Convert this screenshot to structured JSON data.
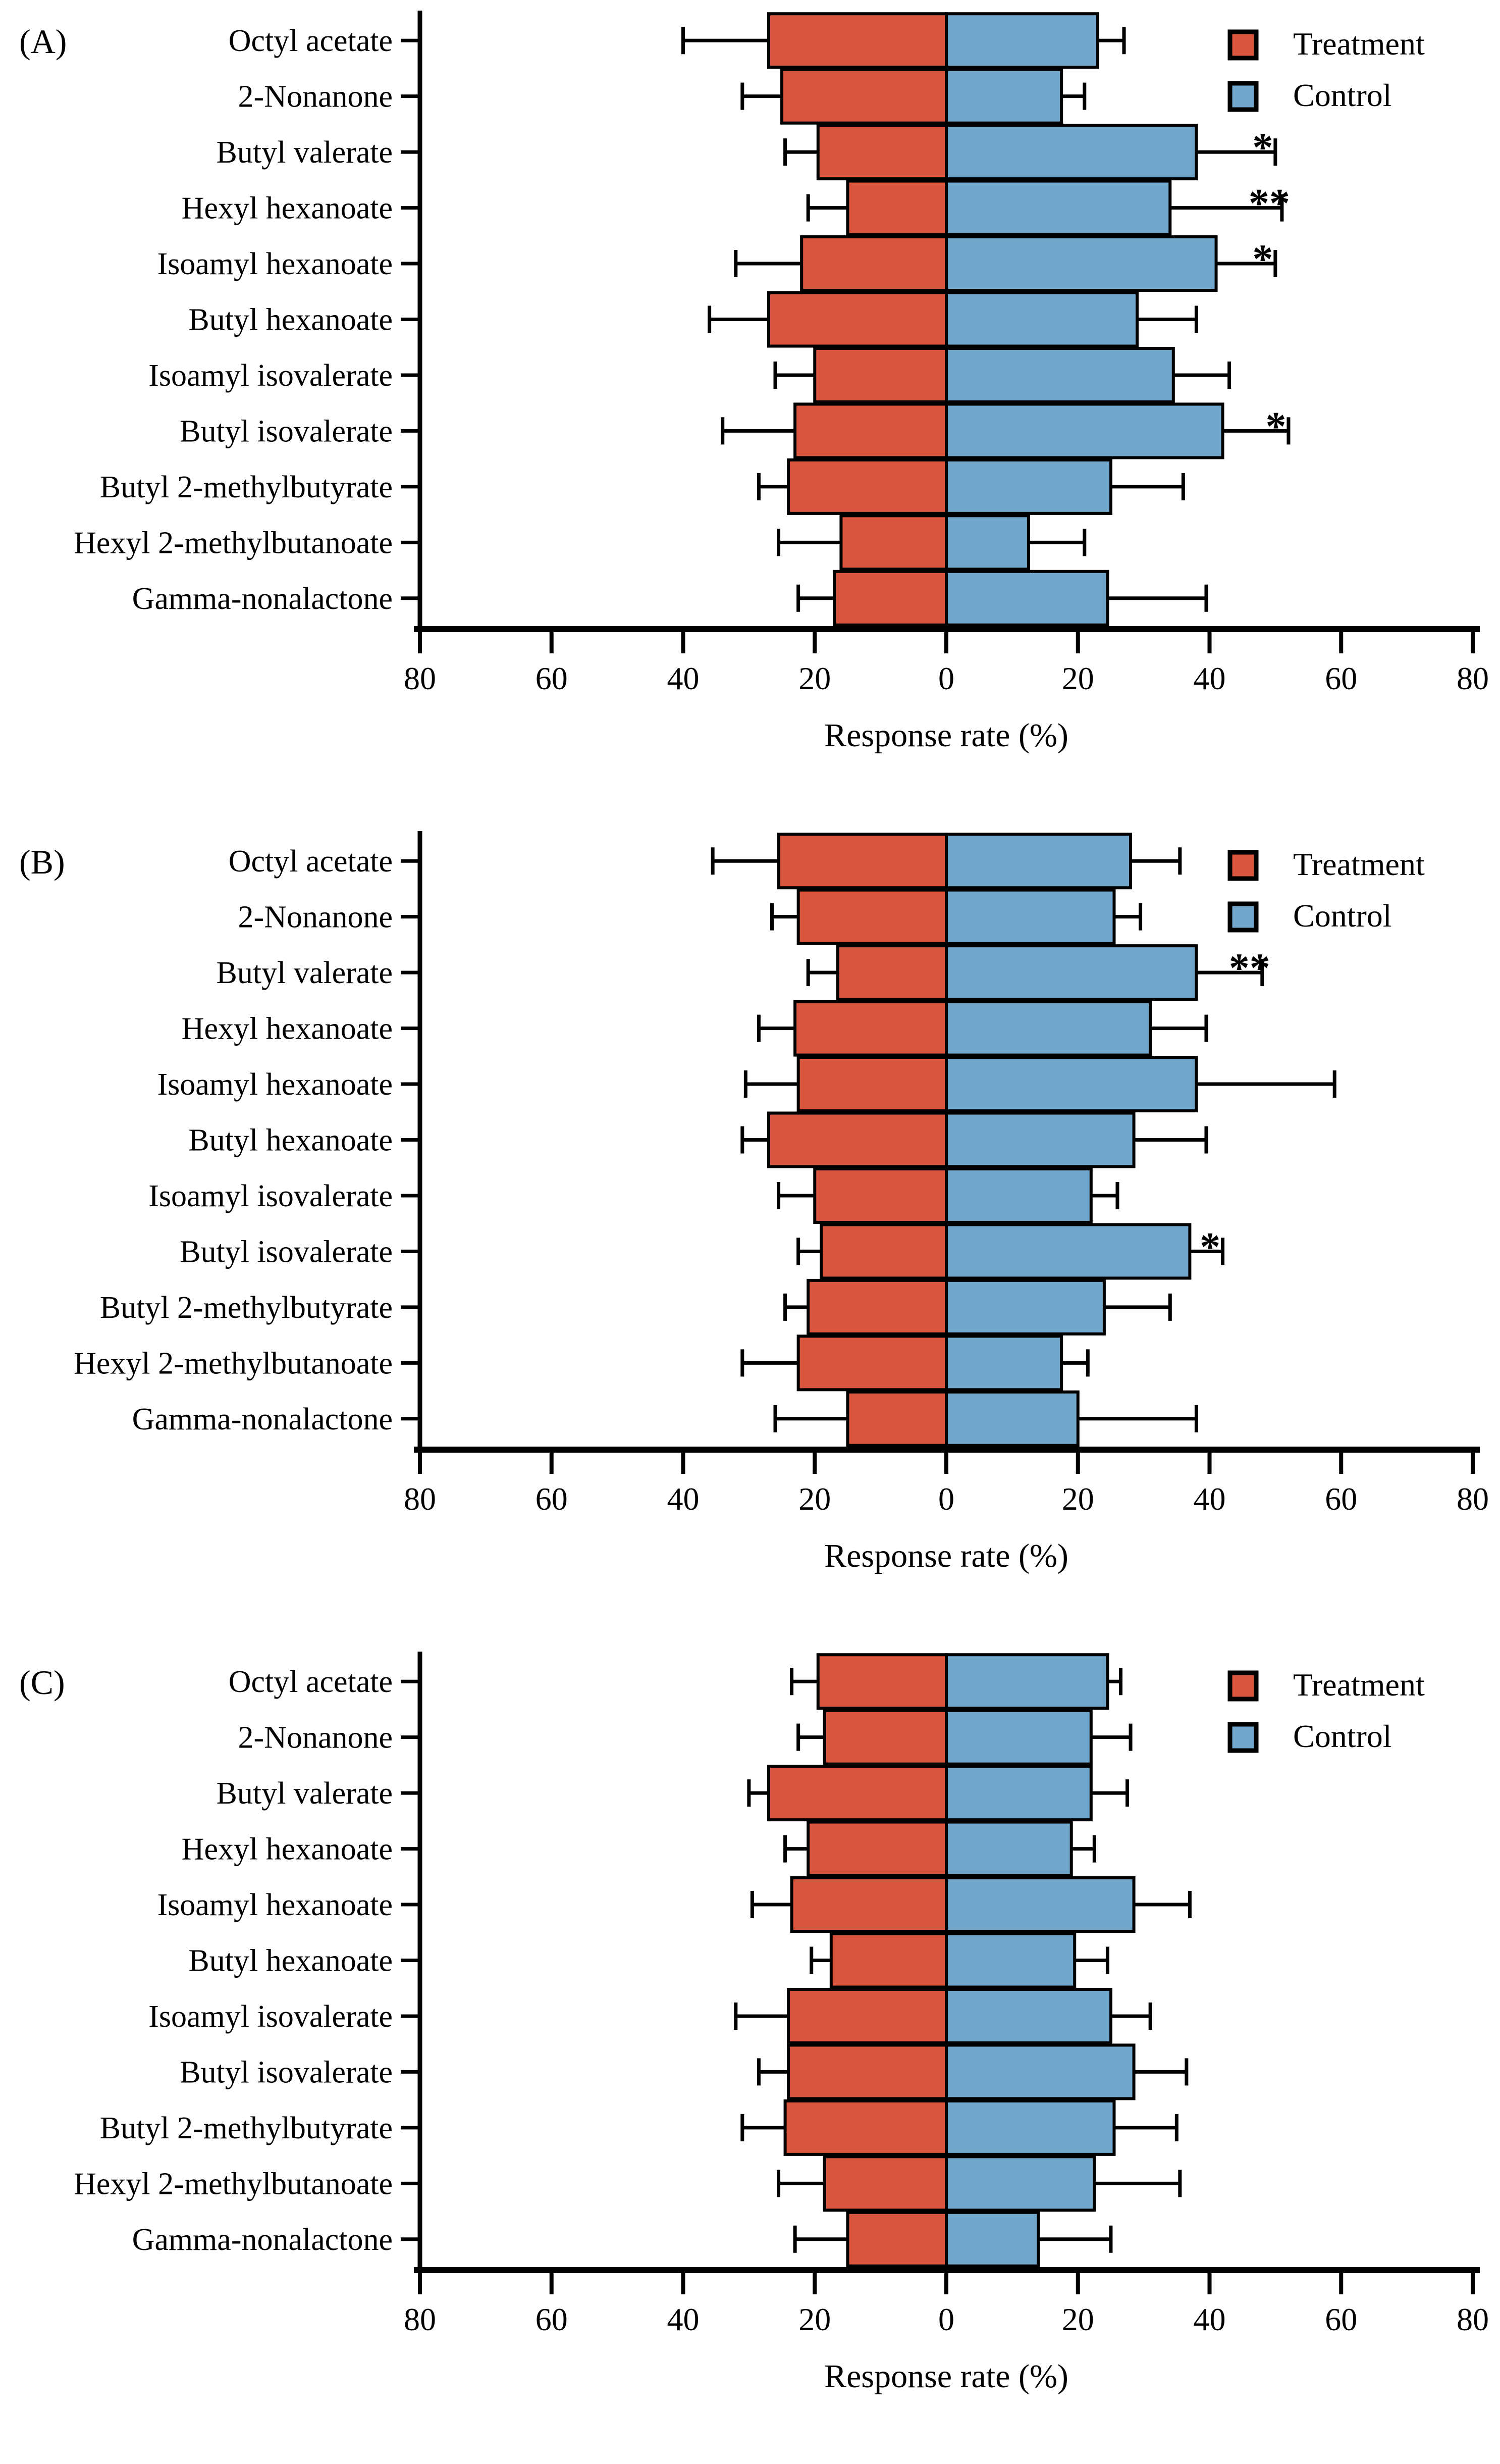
{
  "figure_xlabel": "Response rate (%)",
  "colors": {
    "treatment": "#D9553E",
    "control": "#72A7CC",
    "axis": "#000000",
    "background": "#FFFFFF"
  },
  "legend": {
    "treatment_label": "Treatment",
    "control_label": "Control",
    "position": "top-right"
  },
  "chart_data": [
    {
      "type": "bar",
      "orientation": "horizontal-diverging",
      "panel_label": "(A)",
      "xlabel": "Response rate (%)",
      "xtick_labels": [
        "80",
        "60",
        "40",
        "20",
        "0",
        "20",
        "40",
        "60",
        "80"
      ],
      "xtick_values": [
        -80,
        -60,
        -40,
        -20,
        0,
        20,
        40,
        60,
        80
      ],
      "xlim": [
        -80,
        80
      ],
      "grid": false,
      "legend_entries": [
        "Treatment",
        "Control"
      ],
      "categories": [
        "Octyl acetate",
        "2-Nonanone",
        "Butyl valerate",
        "Hexyl hexanoate",
        "Isoamyl hexanoate",
        "Butyl hexanoate",
        "Isoamyl isovalerate",
        "Butyl isovalerate",
        "Butyl 2-methylbutyrate",
        "Hexyl 2-methylbutanoate",
        "Gamma-nonalactone"
      ],
      "series": [
        {
          "name": "Treatment",
          "color": "#D9553E",
          "direction": "left",
          "values": [
            27,
            25,
            19.5,
            15,
            22,
            27,
            20,
            23,
            24,
            16,
            17
          ],
          "errors": [
            13,
            6,
            5,
            6,
            10,
            9,
            6,
            11,
            4.5,
            9.5,
            5.5
          ]
        },
        {
          "name": "Control",
          "color": "#72A7CC",
          "direction": "right",
          "values": [
            23,
            17.5,
            38,
            34,
            41,
            29,
            34.5,
            42,
            25,
            12.5,
            24.5
          ],
          "errors": [
            4,
            3.5,
            12,
            17,
            9,
            9,
            8.5,
            10,
            11,
            8.5,
            15
          ]
        }
      ],
      "significance": [
        "",
        "",
        "*",
        "**",
        "*",
        "",
        "",
        "*",
        "",
        "",
        ""
      ]
    },
    {
      "type": "bar",
      "orientation": "horizontal-diverging",
      "panel_label": "(B)",
      "xlabel": "Response rate (%)",
      "xtick_labels": [
        "80",
        "60",
        "40",
        "20",
        "0",
        "20",
        "40",
        "60",
        "80"
      ],
      "xtick_values": [
        -80,
        -60,
        -40,
        -20,
        0,
        20,
        40,
        60,
        80
      ],
      "xlim": [
        -80,
        80
      ],
      "grid": false,
      "legend_entries": [
        "Treatment",
        "Control"
      ],
      "categories": [
        "Octyl acetate",
        "2-Nonanone",
        "Butyl valerate",
        "Hexyl hexanoate",
        "Isoamyl hexanoate",
        "Butyl hexanoate",
        "Isoamyl isovalerate",
        "Butyl isovalerate",
        "Butyl 2-methylbutyrate",
        "Hexyl 2-methylbutanoate",
        "Gamma-nonalactone"
      ],
      "series": [
        {
          "name": "Treatment",
          "color": "#D9553E",
          "direction": "left",
          "values": [
            25.5,
            22.5,
            16.5,
            23,
            22.5,
            27,
            20,
            19,
            21,
            22.5,
            15
          ],
          "errors": [
            10,
            4,
            4.5,
            5.5,
            8,
            4,
            5.5,
            3.5,
            3.5,
            8.5,
            11
          ]
        },
        {
          "name": "Control",
          "color": "#72A7CC",
          "direction": "right",
          "values": [
            28,
            25.5,
            38,
            31,
            38,
            28.5,
            22,
            37,
            24,
            17.5,
            20
          ],
          "errors": [
            7.5,
            4,
            10,
            8.5,
            21,
            11,
            4,
            5,
            10,
            4,
            18
          ]
        }
      ],
      "significance": [
        "",
        "",
        "**",
        "",
        "",
        "",
        "",
        "*",
        "",
        "",
        ""
      ]
    },
    {
      "type": "bar",
      "orientation": "horizontal-diverging",
      "panel_label": "(C)",
      "xlabel": "Response rate (%)",
      "xtick_labels": [
        "80",
        "60",
        "40",
        "20",
        "0",
        "20",
        "40",
        "60",
        "80"
      ],
      "xtick_values": [
        -80,
        -60,
        -40,
        -20,
        0,
        20,
        40,
        60,
        80
      ],
      "xlim": [
        -80,
        80
      ],
      "grid": false,
      "legend_entries": [
        "Treatment",
        "Control"
      ],
      "categories": [
        "Octyl acetate",
        "2-Nonanone",
        "Butyl valerate",
        "Hexyl hexanoate",
        "Isoamyl hexanoate",
        "Butyl hexanoate",
        "Isoamyl isovalerate",
        "Butyl isovalerate",
        "Butyl 2-methylbutyrate",
        "Hexyl 2-methylbutanoate",
        "Gamma-nonalactone"
      ],
      "series": [
        {
          "name": "Treatment",
          "color": "#D9553E",
          "direction": "left",
          "values": [
            19.5,
            18.5,
            27,
            21,
            23.5,
            17.5,
            24,
            24,
            24.5,
            18.5,
            15
          ],
          "errors": [
            4,
            4,
            3,
            3.5,
            6,
            3,
            8,
            4.5,
            6.5,
            7,
            8
          ]
        },
        {
          "name": "Control",
          "color": "#72A7CC",
          "direction": "right",
          "values": [
            24.5,
            22,
            22,
            19,
            28.5,
            19.5,
            25,
            28.5,
            25.5,
            22.5,
            14
          ],
          "errors": [
            2,
            6,
            5.5,
            3.5,
            8.5,
            5,
            6,
            8,
            9.5,
            13,
            11
          ]
        }
      ],
      "significance": [
        "",
        "",
        "",
        "",
        "",
        "",
        "",
        "",
        "",
        "",
        ""
      ]
    }
  ]
}
